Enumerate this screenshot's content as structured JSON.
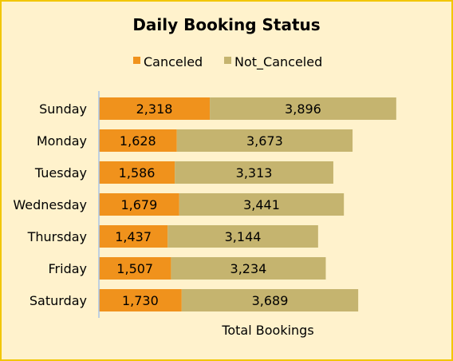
{
  "chart_data": {
    "type": "bar",
    "orientation": "horizontal",
    "stacked": true,
    "title": "Daily Booking Status",
    "xlabel": "Total Bookings",
    "ylabel": "",
    "categories": [
      "Sunday",
      "Monday",
      "Tuesday",
      "Wednesday",
      "Thursday",
      "Friday",
      "Saturday"
    ],
    "series": [
      {
        "name": "Canceled",
        "color": "#f0921c",
        "values": [
          2318,
          1628,
          1586,
          1679,
          1437,
          1507,
          1730
        ],
        "labels": [
          "2,318",
          "1,628",
          "1,586",
          "1,679",
          "1,437",
          "1,507",
          "1,730"
        ]
      },
      {
        "name": "Not_Canceled",
        "color": "#c5b46f",
        "values": [
          3896,
          3673,
          3313,
          3441,
          3144,
          3234,
          3689
        ],
        "labels": [
          "3,896",
          "3,673",
          "3,313",
          "3,441",
          "3,144",
          "3,234",
          "3,689"
        ]
      }
    ],
    "xlim": [
      0,
      6500
    ],
    "grid": false,
    "legend": "top-center",
    "data_labels": "center"
  },
  "colors": {
    "background": "#fff2cc",
    "border": "#f2c600",
    "axis": "#a9c4e8"
  }
}
